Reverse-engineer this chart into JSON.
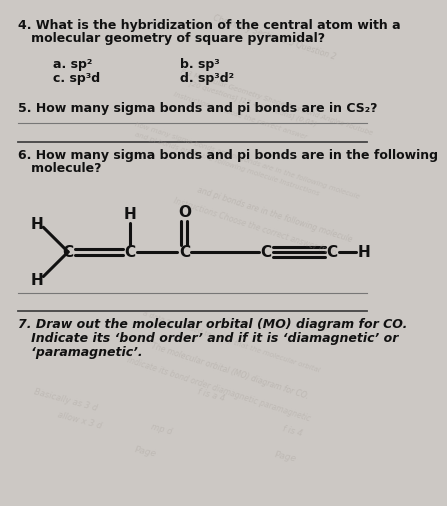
{
  "bg_color": "#ccc8c4",
  "paper_color": "#e8e4e0",
  "text_color": "#111111",
  "q4_line1": "4. What is the hybridization of the central atom with a",
  "q4_line2": "   molecular geometry of square pyramidal?",
  "q4_a": "a. sp²",
  "q4_b": "b. sp³",
  "q4_c": "c. sp³d",
  "q4_d": "d. sp³d²",
  "q5_text": "5. How many sigma bonds and pi bonds are in CS₂?",
  "q6_line1": "6. How many sigma bonds and pi bonds are in the following",
  "q6_line2": "   molecule?",
  "q7_line1": "7. Draw out the molecular orbital (MO) diagram for CO.",
  "q7_line2": "   Indicate its ‘bond order’ and if it is ‘diamagnetic’ or",
  "q7_line3": "   ‘paramagnetic’.",
  "wm_color": "#aaa49e"
}
